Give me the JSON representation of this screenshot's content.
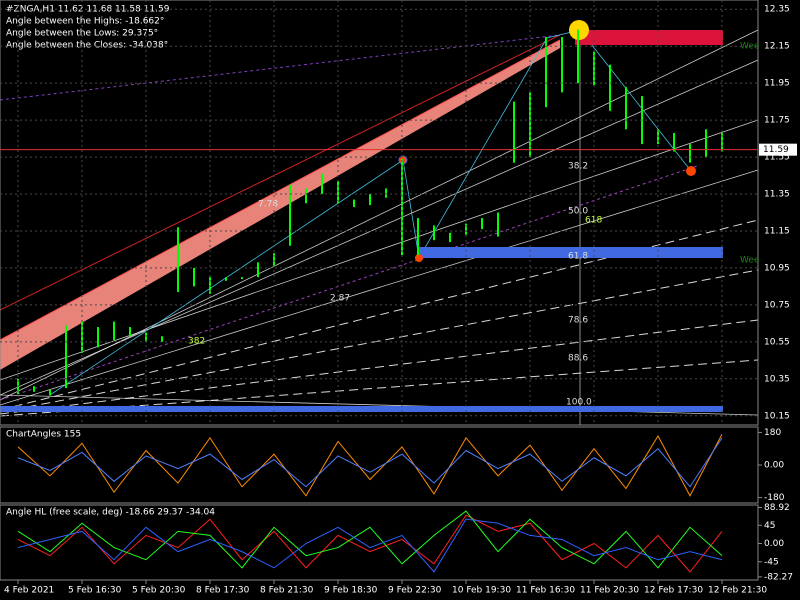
{
  "chart_data": [
    {
      "type": "range",
      "title": "#ZNGA,H1  11.62 11.68 11.58 11.59",
      "subtitles": [
        "Angle between the Highs: -18.662°",
        "Angle between the Lows: 29.375°",
        "Angle between the Closes: -34.038°"
      ],
      "annotations": [
        "38.2",
        "50.0",
        "618",
        "61.8",
        "78.6",
        "88.6",
        "100.0",
        "382",
        "7.78",
        "2.87",
        "Wee",
        "Wee"
      ],
      "categories": [
        "4 Feb 2021",
        null,
        null,
        null,
        "5 Feb 16:30",
        null,
        null,
        null,
        "5 Feb 20:30",
        null,
        null,
        null,
        "8 Feb 17:30",
        null,
        null,
        null,
        "8 Feb 21:30",
        null,
        null,
        null,
        "9 Feb 18:30",
        null,
        null,
        null,
        "9 Feb 22:30",
        null,
        null,
        null,
        "10 Feb 19:30",
        null,
        null,
        null,
        "11 Feb 16:30",
        null,
        null,
        null,
        "11 Feb 20:30",
        null,
        null,
        null,
        "12 Feb 17:30",
        null,
        null,
        null,
        "12 Feb 21:30"
      ],
      "high": [
        10.35,
        10.31,
        10.29,
        10.64,
        10.66,
        10.63,
        10.66,
        10.63,
        10.6,
        10.58,
        11.17,
        10.95,
        10.9,
        10.9,
        10.9,
        10.98,
        11.03,
        11.4,
        11.38,
        11.46,
        11.42,
        11.32,
        11.35,
        11.38,
        11.54,
        11.22,
        11.18,
        11.14,
        11.19,
        11.22,
        11.25,
        11.85,
        11.9,
        12.2,
        12.2,
        12.24,
        12.12,
        12.05,
        11.93,
        11.88,
        11.7,
        11.68,
        11.62,
        11.7,
        11.68
      ],
      "low": [
        10.27,
        10.28,
        10.26,
        10.3,
        10.49,
        10.52,
        10.56,
        10.58,
        10.55,
        10.55,
        10.82,
        10.85,
        10.81,
        10.88,
        10.89,
        10.9,
        10.96,
        11.07,
        11.3,
        11.35,
        11.3,
        11.28,
        11.29,
        11.33,
        11.02,
        11.02,
        11.1,
        11.09,
        11.13,
        11.16,
        11.12,
        11.52,
        11.55,
        11.82,
        11.9,
        11.95,
        11.94,
        11.8,
        11.7,
        11.62,
        11.62,
        11.58,
        11.52,
        11.55,
        11.58
      ],
      "color": "#00ff00",
      "last_price": 11.59,
      "last_price_color": "#e03030",
      "ylim": [
        10.1,
        12.4
      ],
      "yticks": [
        12.35,
        12.15,
        11.95,
        11.75,
        11.55,
        11.35,
        11.15,
        10.95,
        10.75,
        10.55,
        10.35,
        10.15
      ],
      "grid": true
    },
    {
      "type": "line",
      "title": "ChartAngles 155",
      "ylim": [
        -210,
        210
      ],
      "yticks": [
        180,
        {
          "value": 0,
          "label": "0.00"
        },
        -180
      ],
      "series": [
        {
          "color": "#ff8c00",
          "values": [
            100,
            -60,
            120,
            -150,
            80,
            -100,
            150,
            -120,
            60,
            -170,
            130,
            -80,
            100,
            -160,
            150,
            -60,
            110,
            -140,
            90,
            -130,
            160,
            -170,
            170
          ]
        },
        {
          "color": "#4f7fff",
          "values": [
            40,
            -30,
            70,
            -90,
            50,
            -20,
            60,
            -80,
            30,
            -120,
            50,
            -40,
            60,
            -100,
            80,
            -20,
            60,
            -90,
            40,
            -60,
            90,
            -120,
            150
          ]
        }
      ]
    },
    {
      "type": "line",
      "title": "Angle HL (free scale, deg) -18.66 29.37 -34.04",
      "ylim": [
        -90,
        95
      ],
      "yticks": [
        88.92,
        45,
        {
          "value": 0,
          "label": "0.00"
        },
        -45,
        -82.27
      ],
      "series": [
        {
          "color": "#ff2020",
          "values": [
            10,
            -30,
            40,
            -50,
            20,
            -10,
            60,
            -40,
            30,
            -60,
            20,
            -20,
            10,
            -50,
            70,
            30,
            50,
            -40,
            0,
            -60,
            20,
            -70,
            30
          ]
        },
        {
          "color": "#20ff20",
          "values": [
            30,
            -20,
            50,
            -10,
            -40,
            30,
            20,
            -60,
            40,
            -30,
            -10,
            40,
            -50,
            20,
            80,
            -20,
            60,
            -10,
            -50,
            30,
            -60,
            40,
            -30
          ]
        },
        {
          "color": "#3060ff",
          "values": [
            -10,
            10,
            30,
            -40,
            40,
            -20,
            10,
            -20,
            -60,
            0,
            40,
            -10,
            20,
            -70,
            60,
            50,
            20,
            10,
            -30,
            -10,
            -40,
            -20,
            -40
          ]
        }
      ]
    }
  ]
}
